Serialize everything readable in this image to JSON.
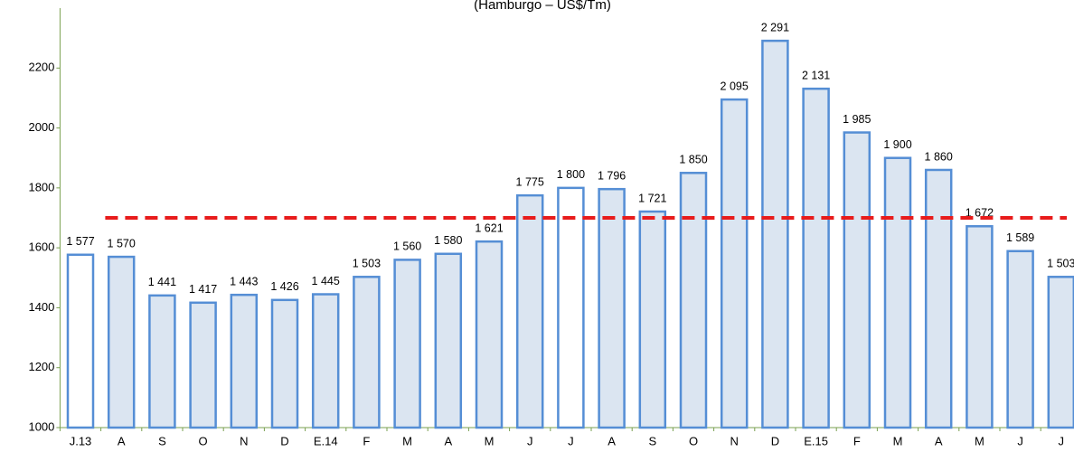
{
  "chart_data": {
    "type": "bar",
    "title": "(Hamburgo – US$/Tm)",
    "categories": [
      "J.13",
      "A",
      "S",
      "O",
      "N",
      "D",
      "E.14",
      "F",
      "M",
      "A",
      "M",
      "J",
      "J",
      "A",
      "S",
      "O",
      "N",
      "D",
      "E.15",
      "F",
      "M",
      "A",
      "M",
      "J",
      "J"
    ],
    "values": [
      1577,
      1570,
      1441,
      1417,
      1443,
      1426,
      1445,
      1503,
      1560,
      1580,
      1621,
      1775,
      1800,
      1796,
      1721,
      1850,
      2095,
      2291,
      2131,
      1985,
      1900,
      1860,
      1672,
      1589,
      1503
    ],
    "value_labels": [
      "1 577",
      "1 570",
      "1 441",
      "1 417",
      "1 443",
      "1 426",
      "1 445",
      "1 503",
      "1 560",
      "1 580",
      "1 621",
      "1 775",
      "1 800",
      "1 796",
      "1 721",
      "1 850",
      "2 095",
      "2 291",
      "2 131",
      "1 985",
      "1 900",
      "1 860",
      "1 672",
      "1 589",
      "1 503"
    ],
    "colors": [
      "#ffffff",
      "#dbe5f1",
      "#dbe5f1",
      "#dbe5f1",
      "#dbe5f1",
      "#dbe5f1",
      "#dbe5f1",
      "#dbe5f1",
      "#dbe5f1",
      "#dbe5f1",
      "#dbe5f1",
      "#dbe5f1",
      "#ffffff",
      "#dbe5f1",
      "#dbe5f1",
      "#dbe5f1",
      "#dbe5f1",
      "#dbe5f1",
      "#dbe5f1",
      "#dbe5f1",
      "#dbe5f1",
      "#dbe5f1",
      "#dbe5f1",
      "#dbe5f1",
      "#dbe5f1"
    ],
    "edge_color": "#558ed5",
    "reference_line": {
      "value": 1700,
      "color": "#e81c1c"
    },
    "ylim": [
      1000,
      2400
    ],
    "yticks": [
      1000,
      1200,
      1400,
      1600,
      1800,
      2000,
      2200
    ],
    "grid": false
  }
}
